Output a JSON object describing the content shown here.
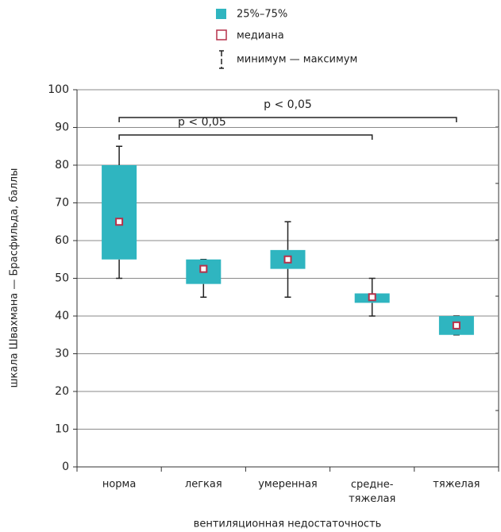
{
  "chart_data": {
    "type": "box",
    "ylabel": "шкала Швахмана — Брасфильда, баллы",
    "xlabel": "вентиляционная недостаточность",
    "categories": [
      "норма",
      "легкая",
      "умеренная",
      "средне-тяжелая",
      "тяжелая"
    ],
    "boxes": [
      {
        "min": 50,
        "q1": 55,
        "median": 65,
        "q3": 80,
        "max": 85
      },
      {
        "min": 45,
        "q1": 48.5,
        "median": 52.5,
        "q3": 55,
        "max": 55
      },
      {
        "min": 45,
        "q1": 52.5,
        "median": 55,
        "q3": 57.5,
        "max": 65
      },
      {
        "min": 40,
        "q1": 43.5,
        "median": 45,
        "q3": 46,
        "max": 50
      },
      {
        "min": 35,
        "q1": 35,
        "median": 37.5,
        "q3": 40,
        "max": 40
      }
    ],
    "box_color": "#2fb5c0",
    "median_color": "#b5314a",
    "ylim": [
      0,
      100
    ],
    "yticks": [
      0,
      10,
      20,
      30,
      40,
      50,
      60,
      70,
      80,
      90,
      100
    ],
    "grid": true,
    "legend": {
      "box": "25%–75%",
      "median": "медиана",
      "whisker": "минимум — максимум"
    },
    "annotations": [
      {
        "text": "p < 0,05",
        "from": 0,
        "to": 4
      },
      {
        "text": "p < 0,05",
        "from": 0,
        "to": 3
      }
    ]
  }
}
